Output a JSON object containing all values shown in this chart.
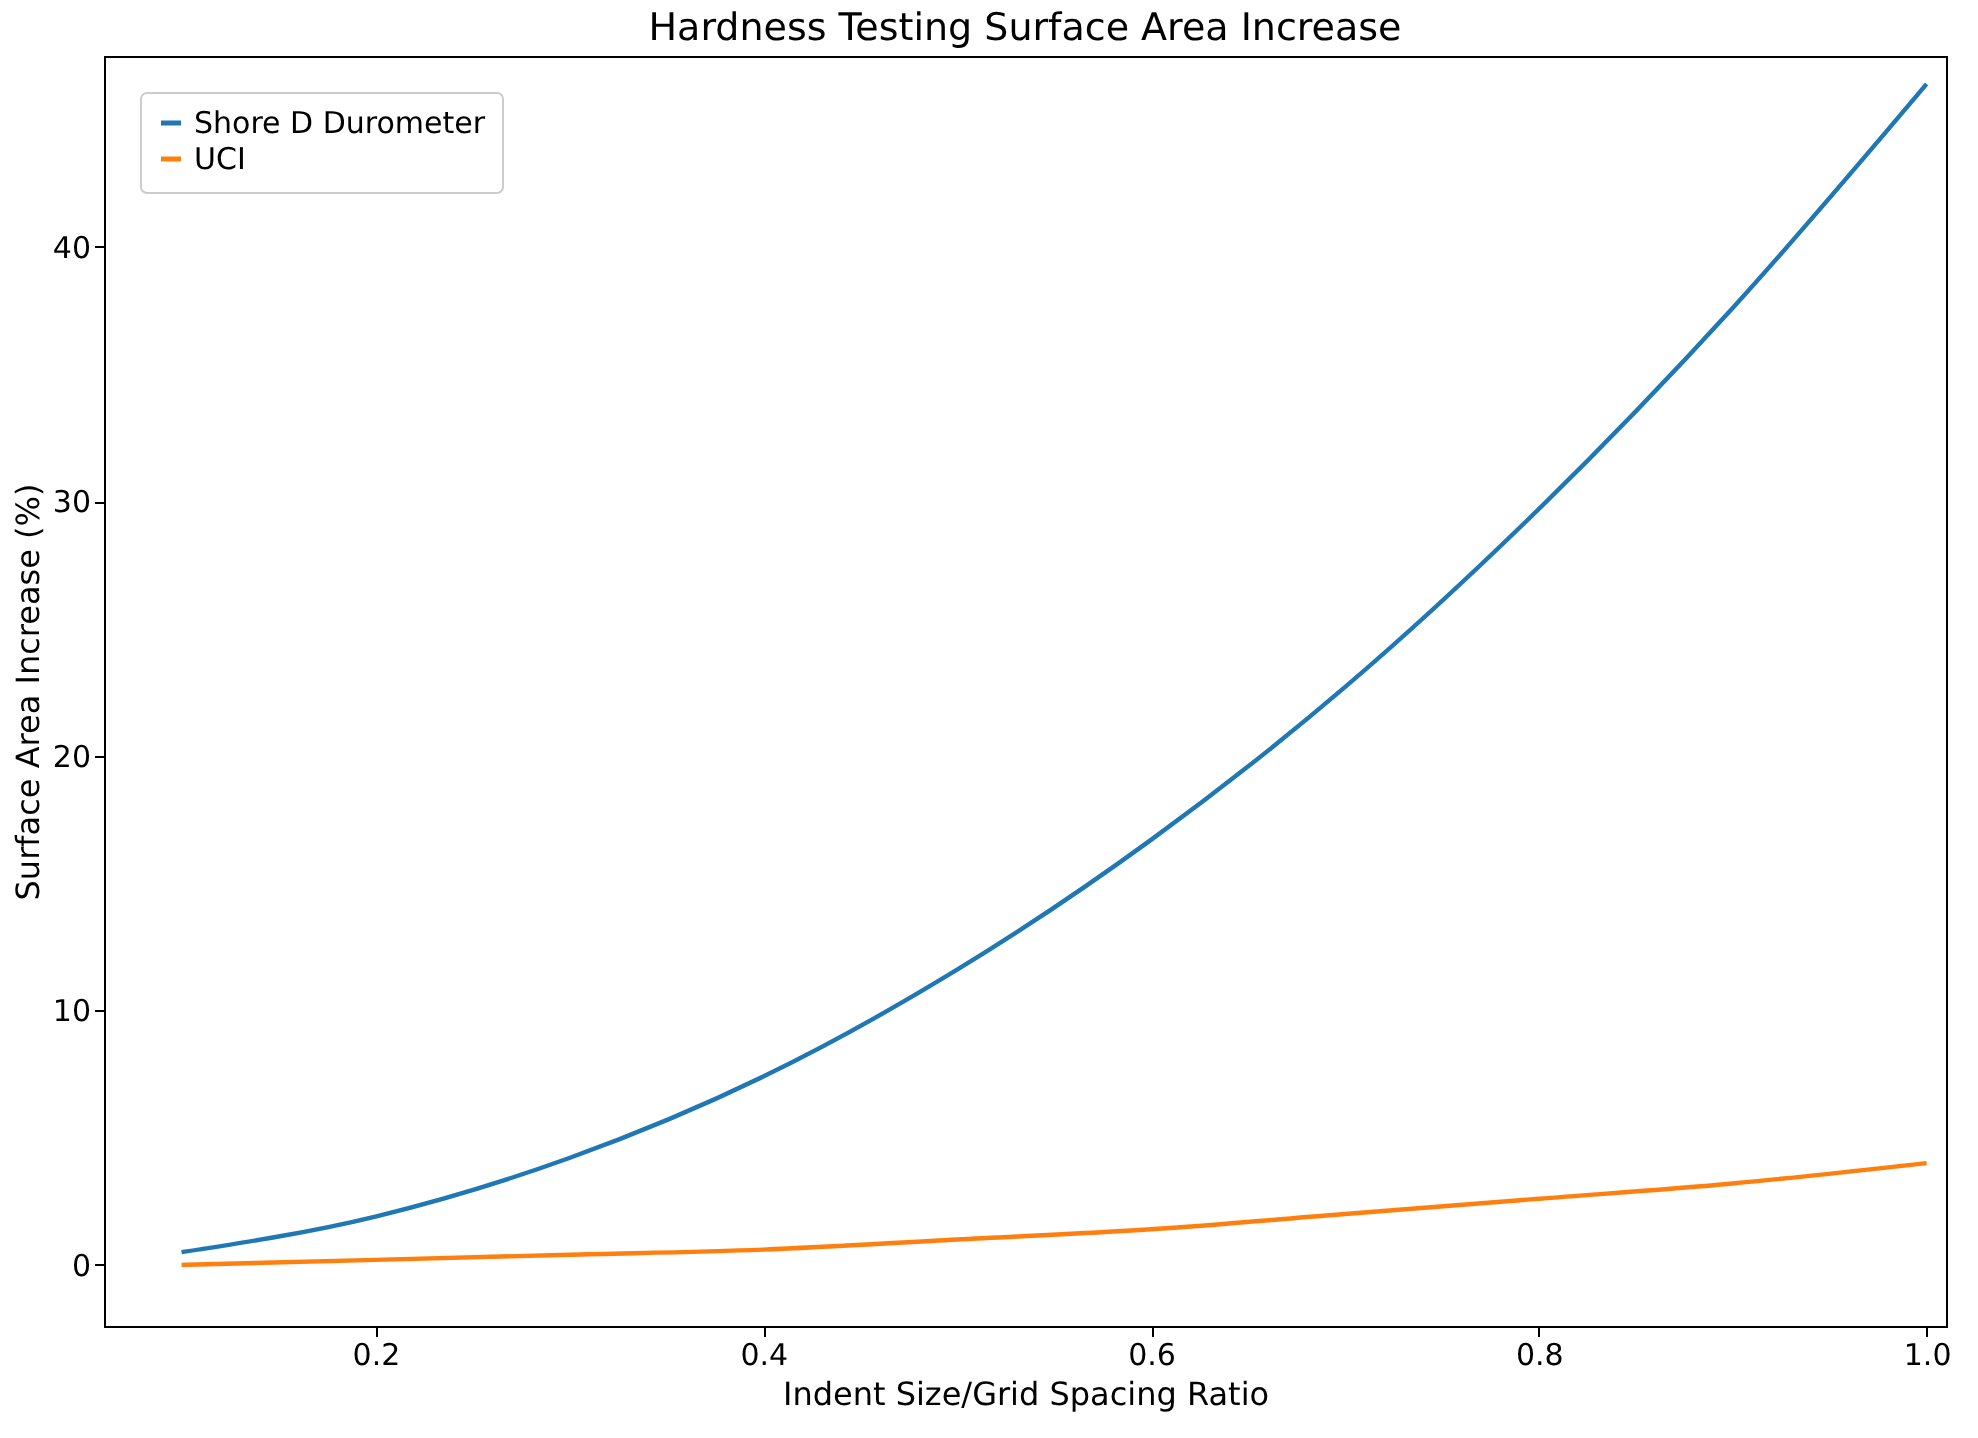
{
  "chart_data": {
    "type": "line",
    "title": "Hardness Testing Surface Area Increase",
    "xlabel": "Indent Size/Grid Spacing Ratio",
    "ylabel": "Surface Area Increase (%)",
    "x": [
      0.1,
      0.2,
      0.3,
      0.4,
      0.5,
      0.6,
      0.7,
      0.8,
      0.9,
      1.0
    ],
    "series": [
      {
        "name": "Shore D Durometer",
        "color": "#1f77b4",
        "values": [
          0.5,
          1.9,
          4.2,
          7.4,
          11.6,
          16.7,
          22.7,
          29.7,
          37.6,
          46.4
        ]
      },
      {
        "name": "UCI",
        "color": "#ff7f0e",
        "values": [
          0.0,
          0.2,
          0.4,
          0.6,
          1.0,
          1.4,
          2.0,
          2.6,
          3.2,
          4.0
        ]
      }
    ],
    "xlim": [
      0.06,
      1.01
    ],
    "ylim": [
      -2.4,
      47.5
    ],
    "xticks": [
      0.2,
      0.4,
      0.6,
      0.8,
      {
        "value": 1,
        "label": "1.0"
      }
    ],
    "yticks": [
      0,
      10,
      20,
      30,
      40
    ],
    "grid": false,
    "legend": "top left",
    "marker": "none",
    "line_style": "solid"
  }
}
